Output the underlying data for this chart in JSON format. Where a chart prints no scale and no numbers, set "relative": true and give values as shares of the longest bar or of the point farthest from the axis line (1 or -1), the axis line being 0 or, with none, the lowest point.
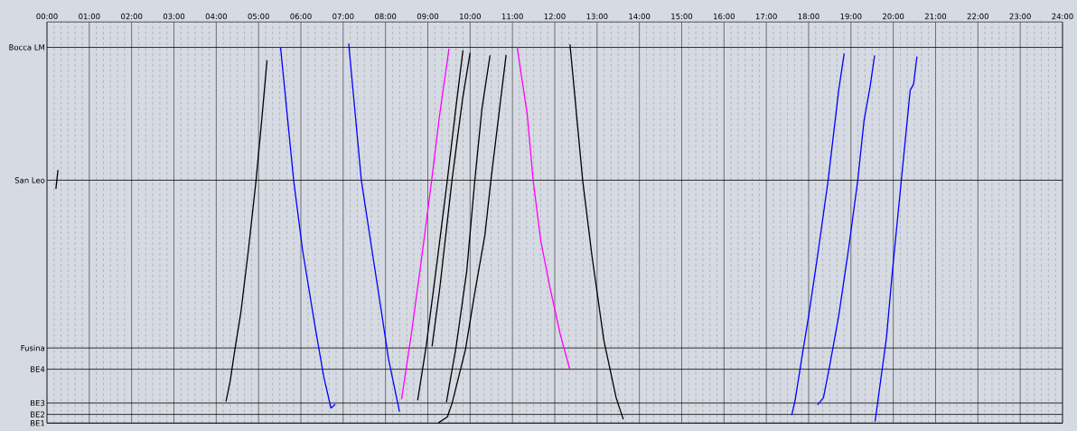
{
  "chart_data": {
    "type": "line",
    "relative": true,
    "xlim": [
      0,
      24
    ],
    "xticks": [
      {
        "value": 0,
        "label": "00:00"
      },
      {
        "value": 1,
        "label": "01:00"
      },
      {
        "value": 2,
        "label": "02:00"
      },
      {
        "value": 3,
        "label": "03:00"
      },
      {
        "value": 4,
        "label": "04:00"
      },
      {
        "value": 5,
        "label": "05:00"
      },
      {
        "value": 6,
        "label": "06:00"
      },
      {
        "value": 7,
        "label": "07:00"
      },
      {
        "value": 8,
        "label": "08:00"
      },
      {
        "value": 9,
        "label": "09:00"
      },
      {
        "value": 10,
        "label": "10:00"
      },
      {
        "value": 11,
        "label": "11:00"
      },
      {
        "value": 12,
        "label": "12:00"
      },
      {
        "value": 13,
        "label": "13:00"
      },
      {
        "value": 14,
        "label": "14:00"
      },
      {
        "value": 15,
        "label": "15:00"
      },
      {
        "value": 16,
        "label": "16:00"
      },
      {
        "value": 17,
        "label": "17:00"
      },
      {
        "value": 18,
        "label": "18:00"
      },
      {
        "value": 19,
        "label": "19:00"
      },
      {
        "value": 20,
        "label": "20:00"
      },
      {
        "value": 21,
        "label": "21:00"
      },
      {
        "value": 22,
        "label": "22:00"
      },
      {
        "value": 23,
        "label": "23:00"
      },
      {
        "value": 24,
        "label": "24:00"
      }
    ],
    "ref_lines": [
      {
        "axis": "y",
        "value": 0,
        "label": "BE1",
        "color": "#000000"
      },
      {
        "axis": "y",
        "value": 0.023,
        "label": "BE2",
        "color": "#000000"
      },
      {
        "axis": "y",
        "value": 0.053,
        "label": "BE3",
        "color": "#000000"
      },
      {
        "axis": "y",
        "value": 0.142,
        "label": "BE4",
        "color": "#000000"
      },
      {
        "axis": "y",
        "value": 0.198,
        "label": "Fusina",
        "color": "#000000"
      },
      {
        "axis": "y",
        "value": 0.64,
        "label": "San Leo",
        "color": "#000000"
      },
      {
        "axis": "y",
        "value": 0.99,
        "label": "Bocca LM",
        "color": "#000000"
      }
    ],
    "grid": "x",
    "marker": "none",
    "line_style": "solid",
    "series": [
      {
        "color": "#000000",
        "x": [
          0.21,
          0.26
        ],
        "values": [
          0.617,
          0.667
        ]
      },
      {
        "color": "#000000",
        "x": [
          4.23,
          4.33,
          4.44,
          4.58,
          4.76,
          4.94,
          5.08,
          5.2
        ],
        "values": [
          0.057,
          0.111,
          0.194,
          0.29,
          0.456,
          0.639,
          0.805,
          0.956
        ]
      },
      {
        "color": "#0000ff",
        "x": [
          5.52,
          5.83,
          6.04,
          6.33,
          6.54,
          6.71,
          6.74,
          6.81
        ],
        "values": [
          0.99,
          0.639,
          0.456,
          0.258,
          0.123,
          0.04,
          0.042,
          0.05
        ]
      },
      {
        "color": "#0000ff",
        "x": [
          7.13,
          7.43,
          7.68,
          7.93,
          8.07,
          8.33
        ],
        "values": [
          1.0,
          0.639,
          0.456,
          0.274,
          0.17,
          0.03
        ]
      },
      {
        "color": "#ff00ff",
        "x": [
          8.38,
          8.61,
          8.86,
          9.09,
          9.28,
          9.5
        ],
        "values": [
          0.063,
          0.234,
          0.44,
          0.639,
          0.813,
          0.986
        ]
      },
      {
        "color": "#000000",
        "x": [
          8.76,
          8.96,
          9.21,
          9.46,
          9.67,
          9.83
        ],
        "values": [
          0.06,
          0.202,
          0.417,
          0.639,
          0.837,
          0.982
        ]
      },
      {
        "color": "#000000",
        "x": [
          9.1,
          9.28,
          9.57,
          9.82,
          10.0
        ],
        "values": [
          0.202,
          0.353,
          0.639,
          0.853,
          0.976
        ]
      },
      {
        "color": "#000000",
        "x": [
          9.44,
          9.67,
          9.92,
          10.11,
          10.28,
          10.47
        ],
        "values": [
          0.055,
          0.202,
          0.401,
          0.639,
          0.829,
          0.969
        ]
      },
      {
        "color": "#000000",
        "x": [
          9.25,
          9.46,
          9.57,
          9.89,
          10.1,
          10.35,
          10.49,
          10.67,
          10.85
        ],
        "values": [
          0.001,
          0.016,
          0.051,
          0.194,
          0.337,
          0.496,
          0.639,
          0.805,
          0.97
        ]
      },
      {
        "color": "#ff00ff",
        "x": [
          11.11,
          11.35,
          11.49,
          11.67,
          11.88,
          12.13,
          12.36
        ],
        "values": [
          0.992,
          0.813,
          0.639,
          0.48,
          0.361,
          0.234,
          0.14
        ]
      },
      {
        "color": "#000000",
        "x": [
          12.36,
          12.66,
          12.88,
          13.16,
          13.45,
          13.62
        ],
        "values": [
          0.998,
          0.639,
          0.44,
          0.218,
          0.067,
          0.01
        ]
      },
      {
        "color": "#0000ff",
        "x": [
          17.6,
          17.68,
          17.87,
          18.0,
          18.21,
          18.46,
          18.71,
          18.84
        ],
        "values": [
          0.021,
          0.06,
          0.194,
          0.282,
          0.44,
          0.639,
          0.877,
          0.974
        ]
      },
      {
        "color": "#0000ff",
        "x": [
          18.21,
          18.35,
          18.49,
          18.71,
          18.95,
          19.16,
          19.31,
          19.45,
          19.56
        ],
        "values": [
          0.048,
          0.067,
          0.147,
          0.282,
          0.464,
          0.639,
          0.798,
          0.885,
          0.969
        ]
      },
      {
        "color": "#0000ff",
        "x": [
          19.57,
          19.84,
          19.98,
          20.19,
          20.4,
          20.48,
          20.56
        ],
        "values": [
          0.004,
          0.226,
          0.401,
          0.639,
          0.877,
          0.893,
          0.966
        ]
      }
    ]
  }
}
